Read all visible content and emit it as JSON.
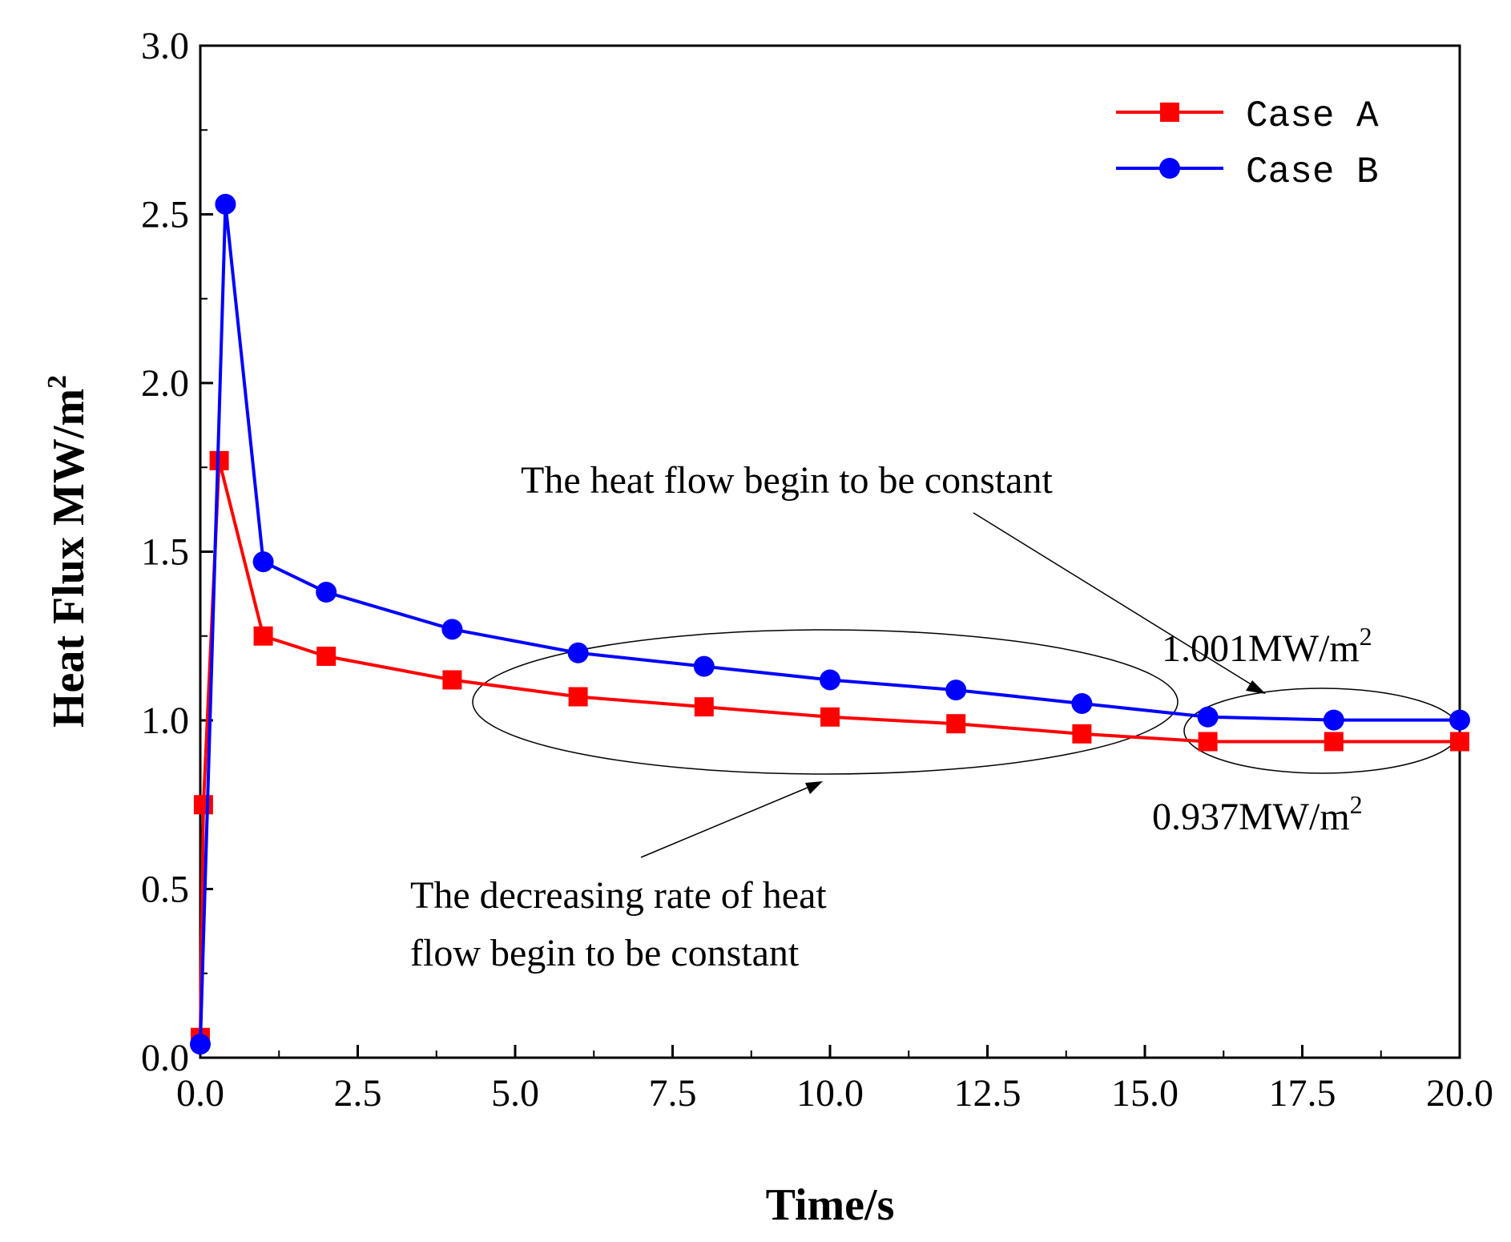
{
  "chart_data": {
    "type": "line",
    "xlabel": "Time/s",
    "ylabel_main": "Heat Flux  MW/m",
    "ylabel_sup": "2",
    "xlim": [
      0,
      20
    ],
    "ylim": [
      0,
      3
    ],
    "xticks": [
      "0.0",
      "2.5",
      "5.0",
      "7.5",
      "10.0",
      "12.5",
      "15.0",
      "17.5",
      "20.0"
    ],
    "yticks": [
      "0.0",
      "0.5",
      "1.0",
      "1.5",
      "2.0",
      "2.5",
      "3.0"
    ],
    "legend_position": "top-right",
    "series": [
      {
        "name": "Case A",
        "color": "#ff0000",
        "marker": "square",
        "x": [
          0,
          0.05,
          0.3,
          1,
          2,
          4,
          6,
          8,
          10,
          12,
          14,
          16,
          18,
          20
        ],
        "y": [
          0.06,
          0.75,
          1.77,
          1.25,
          1.19,
          1.12,
          1.07,
          1.04,
          1.01,
          0.99,
          0.96,
          0.937,
          0.937,
          0.937
        ]
      },
      {
        "name": "Case B",
        "color": "#0000ff",
        "marker": "circle",
        "x": [
          0,
          0.4,
          1,
          2,
          4,
          6,
          8,
          10,
          12,
          14,
          16,
          18,
          20
        ],
        "y": [
          0.04,
          2.53,
          1.47,
          1.38,
          1.27,
          1.2,
          1.16,
          1.12,
          1.09,
          1.05,
          1.01,
          1.001,
          1.001
        ]
      }
    ],
    "annotations": {
      "constant_heat_flow": "The heat flow begin to be constant",
      "decreasing_rate_line1": "The decreasing rate of heat",
      "decreasing_rate_line2": "flow begin to be constant",
      "value_b_main": "1.001MW/m",
      "value_b_sup": "2",
      "value_a_main": "0.937MW/m",
      "value_a_sup": "2"
    }
  }
}
